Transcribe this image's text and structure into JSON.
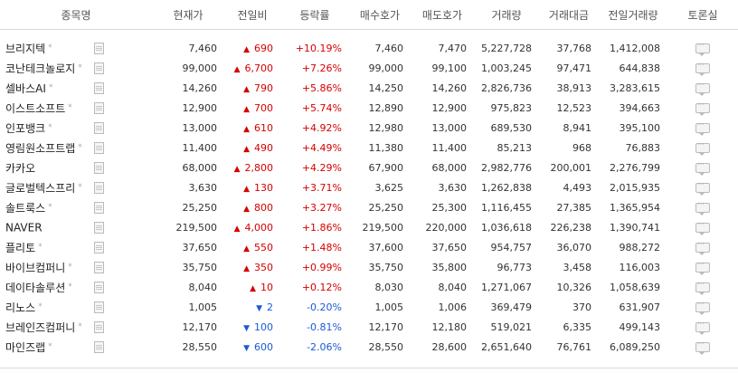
{
  "header": {
    "name": "종목명",
    "price": "현재가",
    "change": "전일비",
    "rate": "등락률",
    "bid": "매수호가",
    "ask": "매도호가",
    "volume": "거래량",
    "amount": "거래대금",
    "prev_volume": "전일거래량",
    "forum": "토론실"
  },
  "colors": {
    "up": "#d60000",
    "down": "#1a5ad6"
  },
  "icons": {
    "document": "document-icon",
    "forum": "speech-bubble-icon",
    "up": "up-triangle-icon",
    "down": "down-triangle-icon"
  },
  "rows": [
    {
      "name": "브리지텍",
      "star": "*",
      "price": "7,460",
      "dir": "up",
      "arrow": "▲",
      "change": "690",
      "rate": "+10.19%",
      "bid": "7,460",
      "ask": "7,470",
      "volume": "5,227,728",
      "amount": "37,768",
      "prev_volume": "1,412,008"
    },
    {
      "name": "코난테크놀로지",
      "star": "*",
      "price": "99,000",
      "dir": "up",
      "arrow": "▲",
      "change": "6,700",
      "rate": "+7.26%",
      "bid": "99,000",
      "ask": "99,100",
      "volume": "1,003,245",
      "amount": "97,471",
      "prev_volume": "644,838"
    },
    {
      "name": "셀바스AI",
      "star": "*",
      "price": "14,260",
      "dir": "up",
      "arrow": "▲",
      "change": "790",
      "rate": "+5.86%",
      "bid": "14,250",
      "ask": "14,260",
      "volume": "2,826,736",
      "amount": "38,913",
      "prev_volume": "3,283,615"
    },
    {
      "name": "이스트소프트",
      "star": "*",
      "price": "12,900",
      "dir": "up",
      "arrow": "▲",
      "change": "700",
      "rate": "+5.74%",
      "bid": "12,890",
      "ask": "12,900",
      "volume": "975,823",
      "amount": "12,523",
      "prev_volume": "394,663"
    },
    {
      "name": "인포뱅크",
      "star": "*",
      "price": "13,000",
      "dir": "up",
      "arrow": "▲",
      "change": "610",
      "rate": "+4.92%",
      "bid": "12,980",
      "ask": "13,000",
      "volume": "689,530",
      "amount": "8,941",
      "prev_volume": "395,100"
    },
    {
      "name": "영림원소프트랩",
      "star": "*",
      "price": "11,400",
      "dir": "up",
      "arrow": "▲",
      "change": "490",
      "rate": "+4.49%",
      "bid": "11,380",
      "ask": "11,400",
      "volume": "85,213",
      "amount": "968",
      "prev_volume": "76,883"
    },
    {
      "name": "카카오",
      "star": "",
      "price": "68,000",
      "dir": "up",
      "arrow": "▲",
      "change": "2,800",
      "rate": "+4.29%",
      "bid": "67,900",
      "ask": "68,000",
      "volume": "2,982,776",
      "amount": "200,001",
      "prev_volume": "2,276,799"
    },
    {
      "name": "글로벌텍스프리",
      "star": "*",
      "price": "3,630",
      "dir": "up",
      "arrow": "▲",
      "change": "130",
      "rate": "+3.71%",
      "bid": "3,625",
      "ask": "3,630",
      "volume": "1,262,838",
      "amount": "4,493",
      "prev_volume": "2,015,935"
    },
    {
      "name": "솔트룩스",
      "star": "*",
      "price": "25,250",
      "dir": "up",
      "arrow": "▲",
      "change": "800",
      "rate": "+3.27%",
      "bid": "25,250",
      "ask": "25,300",
      "volume": "1,116,455",
      "amount": "27,385",
      "prev_volume": "1,365,954"
    },
    {
      "name": "NAVER",
      "star": "",
      "price": "219,500",
      "dir": "up",
      "arrow": "▲",
      "change": "4,000",
      "rate": "+1.86%",
      "bid": "219,500",
      "ask": "220,000",
      "volume": "1,036,618",
      "amount": "226,238",
      "prev_volume": "1,390,741"
    },
    {
      "name": "플리토",
      "star": "*",
      "price": "37,650",
      "dir": "up",
      "arrow": "▲",
      "change": "550",
      "rate": "+1.48%",
      "bid": "37,600",
      "ask": "37,650",
      "volume": "954,757",
      "amount": "36,070",
      "prev_volume": "988,272"
    },
    {
      "name": "바이브컴퍼니",
      "star": "*",
      "price": "35,750",
      "dir": "up",
      "arrow": "▲",
      "change": "350",
      "rate": "+0.99%",
      "bid": "35,750",
      "ask": "35,800",
      "volume": "96,773",
      "amount": "3,458",
      "prev_volume": "116,003"
    },
    {
      "name": "데이타솔루션",
      "star": "*",
      "price": "8,040",
      "dir": "up",
      "arrow": "▲",
      "change": "10",
      "rate": "+0.12%",
      "bid": "8,030",
      "ask": "8,040",
      "volume": "1,271,067",
      "amount": "10,326",
      "prev_volume": "1,058,639"
    },
    {
      "name": "리노스",
      "star": "*",
      "price": "1,005",
      "dir": "down",
      "arrow": "▼",
      "change": "2",
      "rate": "-0.20%",
      "bid": "1,005",
      "ask": "1,006",
      "volume": "369,479",
      "amount": "370",
      "prev_volume": "631,907"
    },
    {
      "name": "브레인즈컴퍼니",
      "star": "*",
      "price": "12,170",
      "dir": "down",
      "arrow": "▼",
      "change": "100",
      "rate": "-0.81%",
      "bid": "12,170",
      "ask": "12,180",
      "volume": "519,021",
      "amount": "6,335",
      "prev_volume": "499,143"
    },
    {
      "name": "마인즈랩",
      "star": "*",
      "price": "28,550",
      "dir": "down",
      "arrow": "▼",
      "change": "600",
      "rate": "-2.06%",
      "bid": "28,550",
      "ask": "28,600",
      "volume": "2,651,640",
      "amount": "76,761",
      "prev_volume": "6,089,250"
    }
  ]
}
